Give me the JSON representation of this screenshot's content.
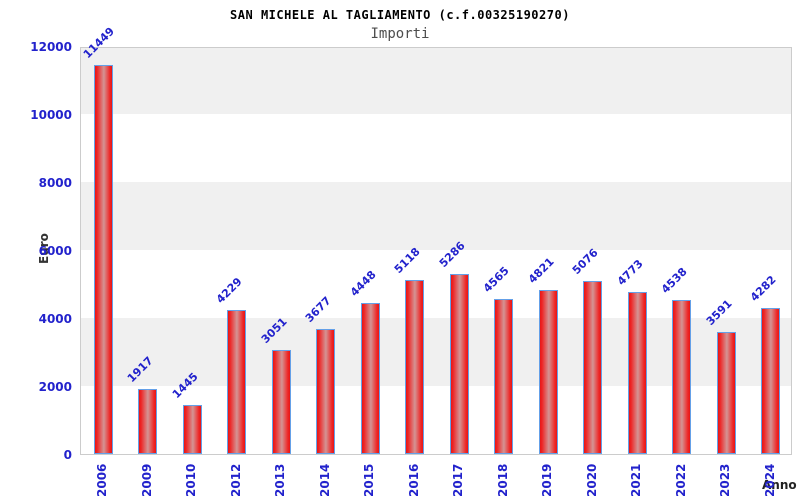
{
  "header": {
    "title": "SAN MICHELE AL TAGLIAMENTO (c.f.00325190270)",
    "subtitle": "Importi"
  },
  "chart_data": {
    "type": "bar",
    "title": "SAN MICHELE AL TAGLIAMENTO (c.f.00325190270)",
    "subtitle": "Importi",
    "categories": [
      "2006",
      "2009",
      "2010",
      "2012",
      "2013",
      "2014",
      "2015",
      "2016",
      "2017",
      "2018",
      "2019",
      "2020",
      "2021",
      "2022",
      "2023",
      "2024"
    ],
    "values": [
      11449,
      1917,
      1445,
      4229,
      3051,
      3677,
      4448,
      5118,
      5286,
      4565,
      4821,
      5076,
      4773,
      4538,
      3591,
      4282
    ],
    "xlabel": "Anno",
    "ylabel": "Euro",
    "ylim": [
      0,
      12000
    ],
    "yticks": [
      0,
      2000,
      4000,
      6000,
      8000,
      10000,
      12000
    ],
    "grid": "alternating horizontal 2000-unit bands, light gray over white",
    "legend": "none",
    "value_labels": "above each bar, rotated 45deg, blue",
    "category_labels": "rotated 90deg, blue"
  },
  "colors": {
    "bar_edge_red": "#e61717",
    "bar_center_pink": "#d49494",
    "bar_border_blue": "#64a0e8",
    "tick_label_blue": "#2222cc",
    "band_gray": "#f0f0f0",
    "plot_border_gray": "#cccccc",
    "title_black": "#000000",
    "subtitle_gray": "#4d4d4d",
    "axis_title_dark": "#333333",
    "background": "#ffffff"
  }
}
